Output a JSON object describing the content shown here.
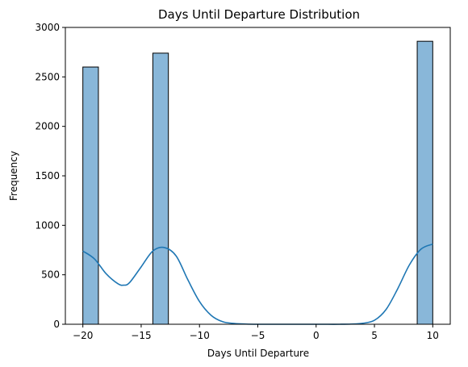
{
  "chart_data": {
    "type": "bar",
    "title": "Days Until Departure Distribution",
    "xlabel": "Days Until Departure",
    "ylabel": "Frequency",
    "xlim": [
      -21.5,
      11.5
    ],
    "ylim": [
      0,
      3000
    ],
    "x_ticks": [
      -20,
      -15,
      -10,
      -5,
      0,
      5,
      10
    ],
    "y_ticks": [
      0,
      500,
      1000,
      1500,
      2000,
      2500,
      3000
    ],
    "bins": [
      {
        "x0": -20.0,
        "x1": -18.667,
        "count": 2600
      },
      {
        "x0": -14.0,
        "x1": -12.667,
        "count": 2740
      },
      {
        "x0": 8.667,
        "x1": 10.0,
        "count": 2860
      }
    ],
    "kde": {
      "x": [
        -20,
        -19,
        -18,
        -17,
        -16.5,
        -16,
        -15,
        -14,
        -13,
        -12,
        -11,
        -10,
        -9,
        -8,
        -7,
        -6,
        -5,
        -4,
        -3,
        -2,
        -1,
        0,
        1,
        2,
        3,
        4,
        5,
        6,
        7,
        8,
        9,
        10
      ],
      "y": [
        740,
        660,
        510,
        410,
        395,
        420,
        580,
        740,
        775,
        690,
        450,
        230,
        90,
        25,
        8,
        2,
        0,
        0,
        0,
        0,
        0,
        0,
        0,
        0,
        2,
        10,
        40,
        150,
        360,
        600,
        760,
        810
      ]
    },
    "bar_color": "#89b7d9",
    "line_color": "#1f77b4"
  }
}
